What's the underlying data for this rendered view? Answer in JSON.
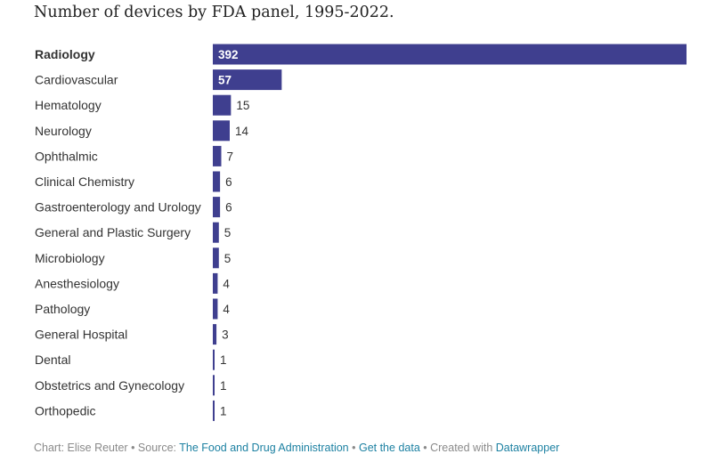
{
  "chart_data": {
    "type": "bar",
    "orientation": "horizontal",
    "title": "Number of devices by FDA panel, 1995-2022.",
    "categories": [
      "Radiology",
      "Cardiovascular",
      "Hematology",
      "Neurology",
      "Ophthalmic",
      "Clinical Chemistry",
      "Gastroenterology and Urology",
      "General and Plastic Surgery",
      "Microbiology",
      "Anesthesiology",
      "Pathology",
      "General Hospital",
      "Dental",
      "Obstetrics and Gynecology",
      "Orthopedic"
    ],
    "values": [
      392,
      57,
      15,
      14,
      7,
      6,
      6,
      5,
      5,
      4,
      4,
      3,
      1,
      1,
      1
    ],
    "value_labels": [
      "392",
      "57",
      "15",
      "14",
      "7",
      "6",
      "6",
      "5",
      "5",
      "4",
      "4",
      "3",
      "1",
      "1",
      "1"
    ],
    "highlighted_category": "Radiology",
    "xlim": [
      0,
      392
    ],
    "grid": false,
    "colors": {
      "bar": "#3f3f8f",
      "label_inside": "#ffffff",
      "label_outside": "#333333"
    }
  },
  "footer": {
    "chart_prefix": "Chart: Elise Reuter • Source: ",
    "source_link": "The Food and Drug Administration",
    "sep1": " • ",
    "data_link": "Get the data",
    "sep2": " • Created with ",
    "dw_link": "Datawrapper"
  }
}
